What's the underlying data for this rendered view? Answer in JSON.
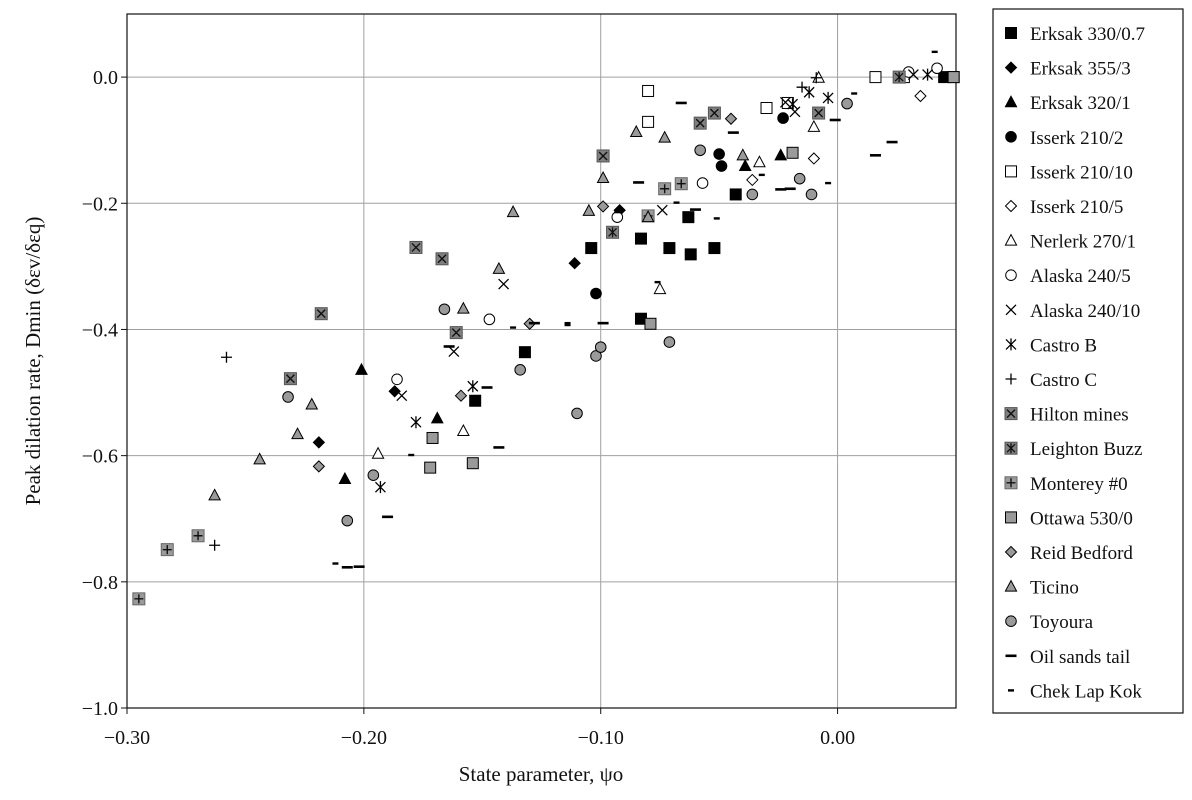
{
  "chart_data": {
    "type": "scatter",
    "title": "",
    "xlabel": "State parameter, ψo",
    "ylabel": "Peak dilation rate, Dmin (δεv/δεq)",
    "xlim": [
      -0.3,
      0.05
    ],
    "ylim": [
      -1.0,
      0.1
    ],
    "xticks": [
      -0.3,
      -0.2,
      -0.1,
      0.0
    ],
    "xtick_labels": [
      "−0.30",
      "−0.20",
      "−0.10",
      "0.00"
    ],
    "yticks": [
      0.0,
      -0.2,
      -0.4,
      -0.6,
      -0.8,
      -1.0
    ],
    "ytick_labels": [
      "0.0",
      "−0.2",
      "−0.4",
      "−0.6",
      "−0.8",
      "−1.0"
    ],
    "grid": true,
    "legend_position": "right",
    "series": [
      {
        "name": "Erksak 330/0.7",
        "marker": "square",
        "fill": "#000000",
        "x": [
          -0.153,
          -0.132,
          -0.104,
          -0.083,
          -0.083,
          -0.071,
          -0.063,
          -0.062,
          -0.052,
          -0.043,
          0.045,
          0.049
        ],
        "y": [
          -0.513,
          -0.436,
          -0.271,
          -0.256,
          -0.383,
          -0.271,
          -0.222,
          -0.281,
          -0.271,
          -0.186,
          0.0,
          0.0
        ]
      },
      {
        "name": "Erksak 355/3",
        "marker": "diamond",
        "fill": "#000000",
        "x": [
          -0.219,
          -0.187,
          -0.111,
          -0.092
        ],
        "y": [
          -0.579,
          -0.498,
          -0.295,
          -0.211
        ]
      },
      {
        "name": "Erksak 320/1",
        "marker": "triangle",
        "fill": "#000000",
        "x": [
          -0.201,
          -0.208,
          -0.169,
          -0.039,
          -0.024
        ],
        "y": [
          -0.464,
          -0.637,
          -0.541,
          -0.141,
          -0.124
        ]
      },
      {
        "name": "Isserk 210/2",
        "marker": "circle",
        "fill": "#000000",
        "x": [
          -0.102,
          -0.049,
          -0.05,
          -0.023
        ],
        "y": [
          -0.343,
          -0.141,
          -0.122,
          -0.065
        ]
      },
      {
        "name": "Isserk 210/10",
        "marker": "square",
        "fill": "#ffffff",
        "x": [
          -0.08,
          -0.08,
          -0.03,
          -0.021,
          0.016,
          0.028
        ],
        "y": [
          -0.022,
          -0.071,
          -0.049,
          -0.041,
          0.0,
          0.0
        ]
      },
      {
        "name": "Isserk 210/5",
        "marker": "diamond",
        "fill": "#ffffff",
        "x": [
          -0.036,
          -0.01,
          0.035
        ],
        "y": [
          -0.163,
          -0.129,
          -0.03
        ]
      },
      {
        "name": "Nerlerk 270/1",
        "marker": "triangle",
        "fill": "#ffffff",
        "x": [
          -0.194,
          -0.158,
          -0.075,
          -0.033,
          -0.01,
          -0.008
        ],
        "y": [
          -0.597,
          -0.561,
          -0.336,
          -0.135,
          -0.079,
          -0.001
        ]
      },
      {
        "name": "Alaska 240/5",
        "marker": "circle",
        "fill": "#ffffff",
        "x": [
          -0.186,
          -0.147,
          -0.093,
          -0.057,
          0.03,
          0.042
        ],
        "y": [
          -0.479,
          -0.384,
          -0.222,
          -0.168,
          0.008,
          0.014
        ]
      },
      {
        "name": "Alaska 240/10",
        "marker": "x",
        "fill": "none",
        "x": [
          -0.184,
          -0.162,
          -0.141,
          -0.074,
          -0.022,
          -0.018,
          0.032
        ],
        "y": [
          -0.505,
          -0.435,
          -0.328,
          -0.211,
          -0.04,
          -0.055,
          0.004
        ]
      },
      {
        "name": "Castro B",
        "marker": "asterisk",
        "fill": "none",
        "x": [
          -0.193,
          -0.178,
          -0.154,
          -0.019,
          -0.012,
          -0.004,
          0.038
        ],
        "y": [
          -0.65,
          -0.547,
          -0.49,
          -0.043,
          -0.024,
          -0.033,
          0.004
        ]
      },
      {
        "name": "Castro C",
        "marker": "plus",
        "fill": "none",
        "x": [
          -0.258,
          -0.263,
          -0.009,
          -0.015
        ],
        "y": [
          -0.444,
          -0.742,
          -0.001,
          -0.016
        ]
      },
      {
        "name": "Hilton mines",
        "marker": "square-x",
        "fill": "#808080",
        "x": [
          -0.231,
          -0.218,
          -0.178,
          -0.167,
          -0.161,
          -0.099,
          -0.058,
          -0.052,
          -0.008
        ],
        "y": [
          -0.478,
          -0.375,
          -0.27,
          -0.288,
          -0.405,
          -0.125,
          -0.073,
          -0.057,
          -0.057
        ]
      },
      {
        "name": "Leighton Buzz",
        "marker": "square-asterisk",
        "fill": "#808080",
        "x": [
          -0.095,
          0.026
        ],
        "y": [
          -0.246,
          0.0
        ]
      },
      {
        "name": "Monterey #0",
        "marker": "square-plus",
        "fill": "#9a9a9a",
        "x": [
          -0.295,
          -0.283,
          -0.27,
          -0.08,
          -0.066,
          -0.073
        ],
        "y": [
          -0.827,
          -0.749,
          -0.727,
          -0.22,
          -0.169,
          -0.177
        ]
      },
      {
        "name": "Ottawa 530/0",
        "marker": "square",
        "fill": "#9a9a9a",
        "x": [
          -0.171,
          -0.172,
          -0.154,
          -0.079,
          -0.019,
          0.049
        ],
        "y": [
          -0.572,
          -0.619,
          -0.612,
          -0.391,
          -0.12,
          0.0
        ]
      },
      {
        "name": "Reid Bedford",
        "marker": "diamond",
        "fill": "#9a9a9a",
        "x": [
          -0.219,
          -0.159,
          -0.13,
          -0.099,
          -0.045
        ],
        "y": [
          -0.617,
          -0.505,
          -0.391,
          -0.205,
          -0.066
        ]
      },
      {
        "name": "Ticino",
        "marker": "triangle",
        "fill": "#9a9a9a",
        "x": [
          -0.263,
          -0.244,
          -0.228,
          -0.222,
          -0.158,
          -0.143,
          -0.137,
          -0.105,
          -0.099,
          -0.085,
          -0.073,
          -0.08,
          -0.04
        ],
        "y": [
          -0.663,
          -0.606,
          -0.566,
          -0.519,
          -0.367,
          -0.304,
          -0.214,
          -0.212,
          -0.16,
          -0.087,
          -0.096,
          -0.222,
          -0.124
        ]
      },
      {
        "name": "Toyoura",
        "marker": "circle",
        "fill": "#9a9a9a",
        "x": [
          -0.232,
          -0.207,
          -0.196,
          -0.166,
          -0.134,
          -0.11,
          -0.102,
          -0.1,
          -0.071,
          -0.058,
          -0.036,
          -0.016,
          -0.011,
          0.004
        ],
        "y": [
          -0.507,
          -0.703,
          -0.631,
          -0.368,
          -0.464,
          -0.533,
          -0.442,
          -0.428,
          -0.42,
          -0.116,
          -0.186,
          -0.161,
          -0.186,
          -0.042
        ]
      },
      {
        "name": "Oil sands tail",
        "marker": "dash",
        "fill": "none",
        "x": [
          -0.207,
          -0.202,
          -0.19,
          -0.164,
          -0.148,
          -0.143,
          -0.128,
          -0.099,
          -0.084,
          -0.066,
          -0.06,
          -0.044,
          -0.024,
          -0.02,
          -0.001,
          0.016,
          0.023
        ],
        "y": [
          -0.777,
          -0.776,
          -0.697,
          -0.427,
          -0.492,
          -0.587,
          -0.39,
          -0.39,
          -0.167,
          -0.041,
          -0.21,
          -0.088,
          -0.178,
          -0.177,
          -0.068,
          -0.124,
          -0.103
        ]
      },
      {
        "name": "Chek Lap Kok",
        "marker": "smalldash",
        "fill": "none",
        "x": [
          -0.212,
          -0.18,
          -0.137,
          -0.114,
          -0.114,
          -0.093,
          -0.076,
          -0.068,
          -0.051,
          -0.032,
          -0.004,
          0.007,
          0.041
        ],
        "y": [
          -0.771,
          -0.599,
          -0.397,
          -0.39,
          -0.393,
          -0.214,
          -0.325,
          -0.199,
          -0.224,
          -0.155,
          -0.168,
          -0.026,
          0.04
        ]
      }
    ]
  }
}
